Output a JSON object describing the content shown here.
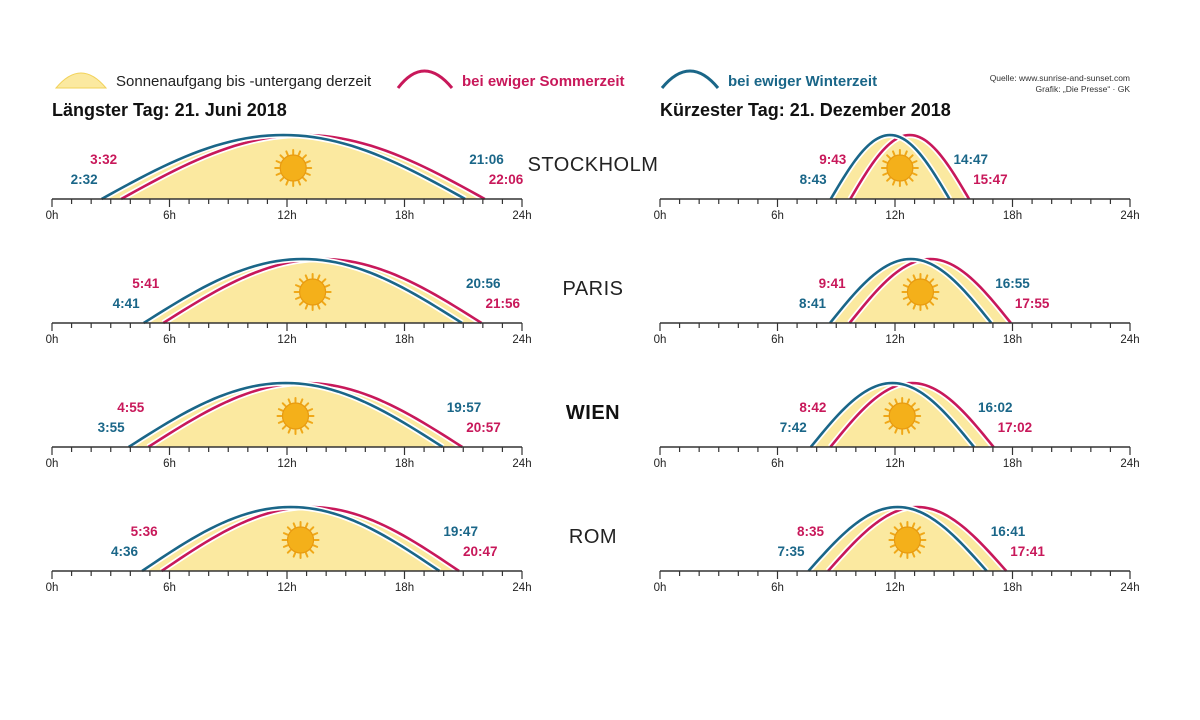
{
  "colors": {
    "daylight_fill": "#fbe9a0",
    "daylight_stroke": "#f2d25a",
    "summer_curve": "#c8185a",
    "winter_curve": "#1a6688",
    "sun_fill": "#f4b01a",
    "sun_rays": "#f0a818",
    "axis": "#333333"
  },
  "legend": {
    "daylight_label": "Sonnenaufgang bis -untergang derzeit",
    "summer_label": "bei ewiger Sommerzeit",
    "winter_label": "bei ewiger Winterzeit"
  },
  "source": {
    "line1": "Quelle: www.sunrise-and-sunset.com",
    "line2": "Grafik: „Die Presse“ · GK"
  },
  "chart_data": {
    "type": "area",
    "x_unit": "hour of day",
    "x_range": [
      0,
      24
    ],
    "x_ticks": [
      "0h",
      "6h",
      "12h",
      "18h",
      "24h"
    ],
    "panels": [
      {
        "key": "summer",
        "title": "Längster Tag: 21. Juni 2018"
      },
      {
        "key": "winter",
        "title": "Kürzester Tag: 21. Dezember 2018"
      }
    ],
    "cities": [
      {
        "name": "STOCKHOLM",
        "bold": false,
        "summer": {
          "winter_rise": "2:32",
          "winter_set": "21:06",
          "summer_rise": "3:32",
          "summer_set": "22:06"
        },
        "winter": {
          "winter_rise": "8:43",
          "winter_set": "14:47",
          "summer_rise": "9:43",
          "summer_set": "15:47"
        }
      },
      {
        "name": "PARIS",
        "bold": false,
        "summer": {
          "winter_rise": "4:41",
          "winter_set": "20:56",
          "summer_rise": "5:41",
          "summer_set": "21:56"
        },
        "winter": {
          "winter_rise": "8:41",
          "winter_set": "16:55",
          "summer_rise": "9:41",
          "summer_set": "17:55"
        }
      },
      {
        "name": "WIEN",
        "bold": true,
        "summer": {
          "winter_rise": "3:55",
          "winter_set": "19:57",
          "summer_rise": "4:55",
          "summer_set": "20:57"
        },
        "winter": {
          "winter_rise": "7:42",
          "winter_set": "16:02",
          "summer_rise": "8:42",
          "summer_set": "17:02"
        }
      },
      {
        "name": "ROM",
        "bold": false,
        "summer": {
          "winter_rise": "4:36",
          "winter_set": "19:47",
          "summer_rise": "5:36",
          "summer_set": "20:47"
        },
        "winter": {
          "winter_rise": "7:35",
          "winter_set": "16:41",
          "summer_rise": "8:35",
          "summer_set": "17:41"
        }
      }
    ]
  }
}
